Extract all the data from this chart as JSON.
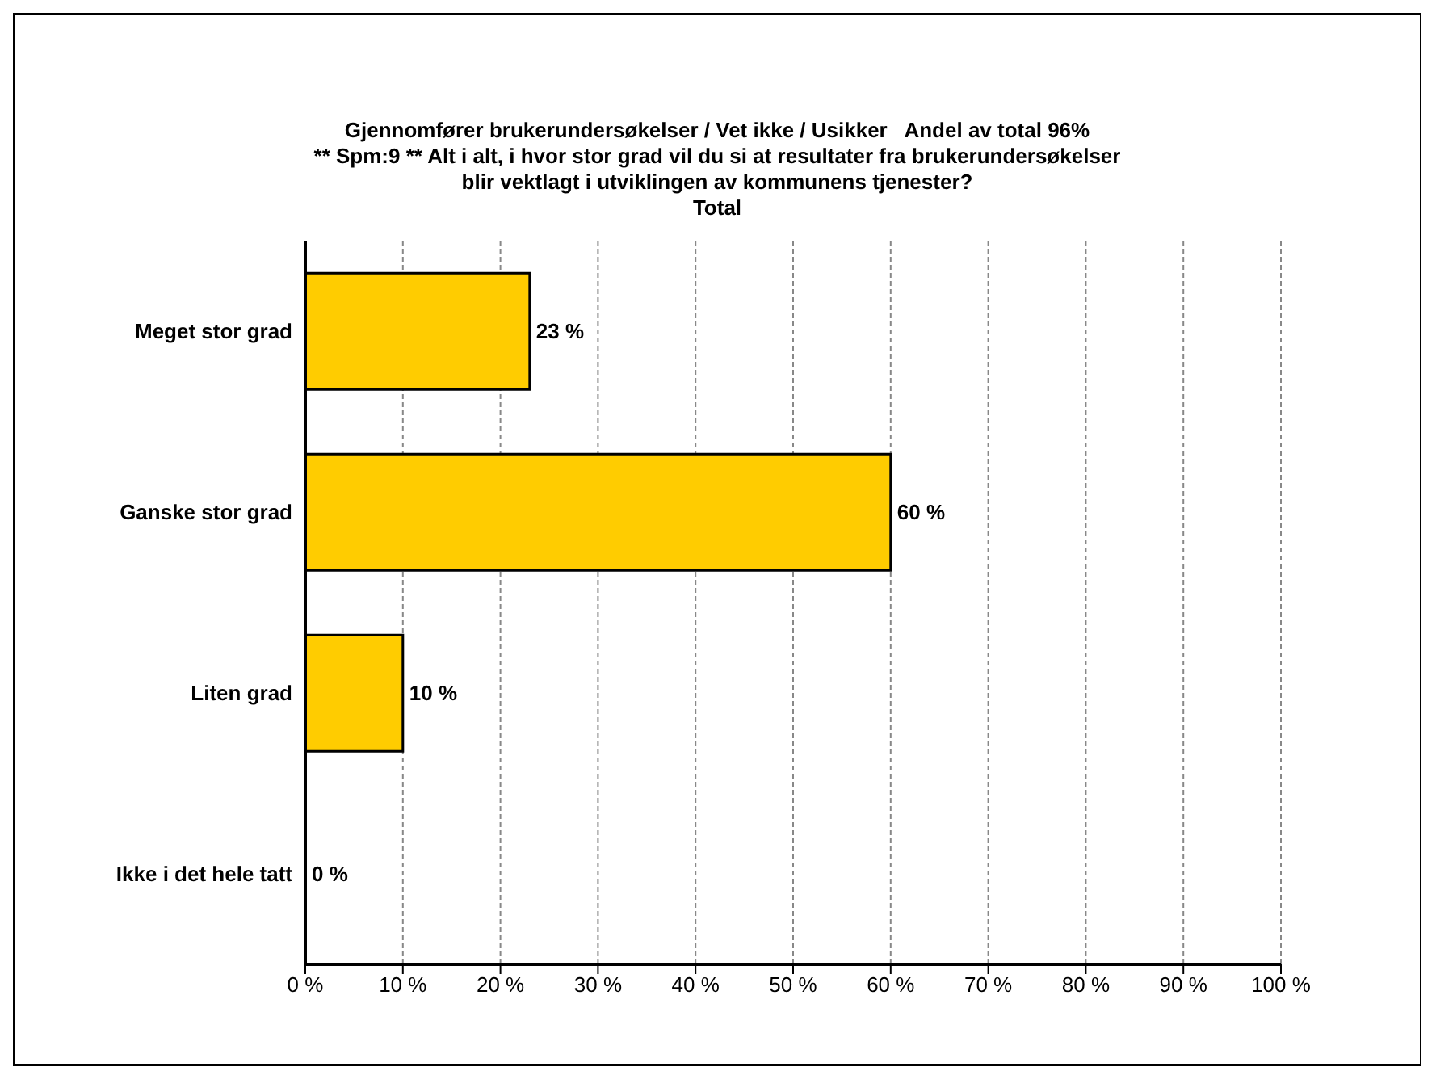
{
  "chart_data": {
    "type": "bar",
    "orientation": "horizontal",
    "title": "Gjennomfører brukerundersøkelser / Vet ikke / Usikker   Andel av total 96%",
    "subtitle": "** Spm:9 ** Alt i alt, i hvor stor grad vil du si at resultater fra brukerundersøkelser\nblir vektlagt i utviklingen av kommunens tjenester?\nTotal",
    "categories": [
      "Meget stor grad",
      "Ganske stor grad",
      "Liten grad",
      "Ikke i det hele tatt"
    ],
    "values": [
      23,
      60,
      10,
      0
    ],
    "value_labels": [
      "23 %",
      "60 %",
      "10 %",
      "0 %"
    ],
    "color": "#ffcc00",
    "xlim": [
      0,
      100
    ],
    "xticks": [
      {
        "value": 0,
        "label": "0 %"
      },
      {
        "value": 10,
        "label": "10 %"
      },
      {
        "value": 20,
        "label": "20 %"
      },
      {
        "value": 30,
        "label": "30 %"
      },
      {
        "value": 40,
        "label": "40 %"
      },
      {
        "value": 50,
        "label": "50 %"
      },
      {
        "value": 60,
        "label": "60 %"
      },
      {
        "value": 70,
        "label": "70 %"
      },
      {
        "value": 80,
        "label": "80 %"
      },
      {
        "value": 90,
        "label": "90 %"
      },
      {
        "value": 100,
        "label": "100 %"
      }
    ],
    "grid": "x",
    "legend": false
  }
}
